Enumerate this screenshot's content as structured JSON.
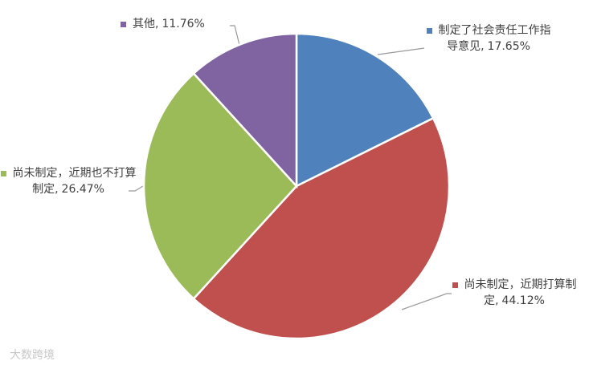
{
  "chart_data": {
    "type": "pie",
    "categories": [
      "制定了社会责任工作指导意见,",
      "尚未制定，近期打算制定,",
      "尚未制定，近期也不打算制定,",
      "其他,"
    ],
    "values": [
      17.65,
      44.12,
      26.47,
      11.76
    ],
    "value_labels": [
      "17.65%",
      "44.12%",
      "26.47%",
      "11.76%"
    ],
    "colors": [
      "#4f81bd",
      "#c0504d",
      "#9bbb59",
      "#8064a2"
    ]
  },
  "watermark": "大数跨境"
}
